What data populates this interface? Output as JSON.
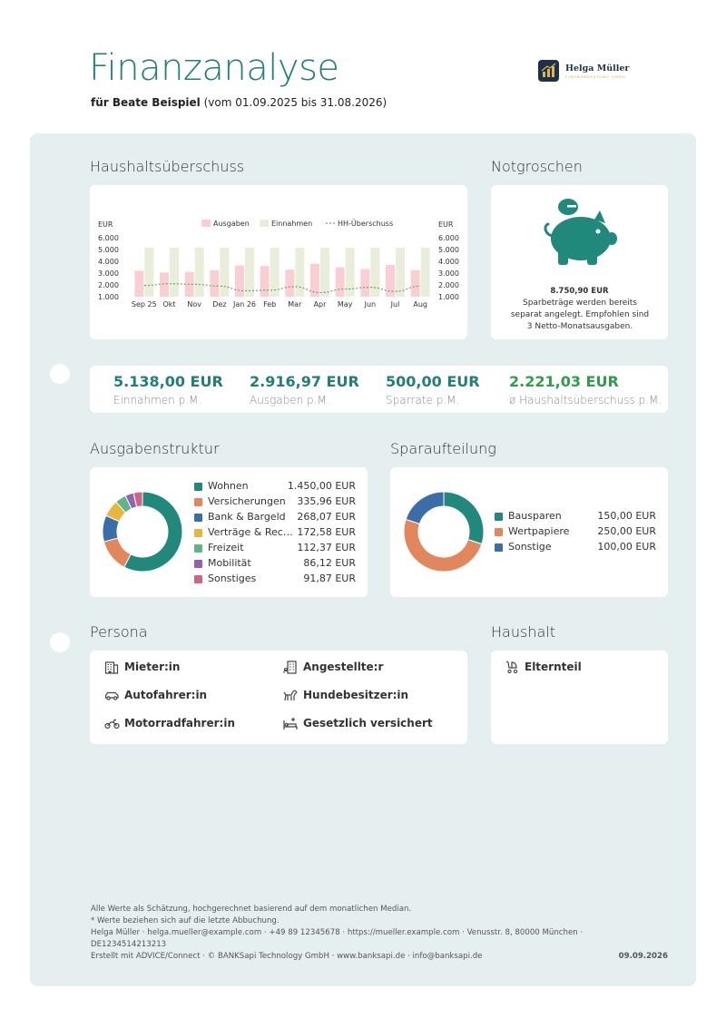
{
  "header": {
    "title": "Finanzanalyse",
    "subtitle_name": "für Beate Beispiel",
    "subtitle_period": " (vom 01.09.2025 bis 31.08.2026)",
    "logo_name": "Helga Müller",
    "logo_sub": "FINANZBERATUNG GMBH",
    "logo_icon": "bar-chart-logo-icon"
  },
  "sections": {
    "haushalt_ueberschuss": "Haushaltsüberschuss",
    "notgroschen": "Notgroschen",
    "ausgabenstruktur": "Ausgabenstruktur",
    "sparaufteilung": "Sparaufteilung",
    "persona": "Persona",
    "haushalt": "Haushalt"
  },
  "chart_data": [
    {
      "type": "bar",
      "categories": [
        "Sep 25",
        "Okt",
        "Nov",
        "Dez",
        "Jan 26",
        "Feb",
        "Mar",
        "Apr",
        "May",
        "Jun",
        "Jul",
        "Aug"
      ],
      "series": [
        {
          "name": "Ausgaben",
          "kind": "bar",
          "color": "#f9cfd4",
          "values": [
            3200,
            3050,
            3100,
            3250,
            3650,
            3600,
            3300,
            3800,
            3500,
            3350,
            3700,
            3250
          ]
        },
        {
          "name": "Einnahmen",
          "kind": "bar",
          "color": "#e8eed9",
          "values": [
            5150,
            5150,
            5150,
            5150,
            5150,
            5150,
            5150,
            5150,
            5150,
            5150,
            5150,
            5150
          ]
        },
        {
          "name": "HH-Überschuss",
          "kind": "line",
          "color": "#6aa56a",
          "values": [
            1950,
            2100,
            2050,
            1900,
            1500,
            1550,
            1850,
            1350,
            1650,
            1800,
            1450,
            1900
          ]
        }
      ],
      "ylabel_left": "EUR",
      "ylabel_right": "EUR",
      "ylim": [
        1000,
        6000
      ],
      "yticks": [
        "6.000",
        "5.000",
        "4.000",
        "3.000",
        "2.000",
        "1.000"
      ],
      "legend": "top-center",
      "grid": false
    },
    {
      "type": "pie",
      "title": "Ausgabenstruktur",
      "donut": true,
      "slices": [
        {
          "label": "Wohnen",
          "value": 1450.0,
          "display": "1.450,00 EUR",
          "color": "#21887c"
        },
        {
          "label": "Versicherungen",
          "value": 335.96,
          "display": "335,96 EUR",
          "color": "#e2875b"
        },
        {
          "label": "Bank & Bargeld",
          "value": 268.07,
          "display": "268,07 EUR",
          "color": "#3b6ea8"
        },
        {
          "label": "Verträge & Rechnu...",
          "value": 172.58,
          "display": "172,58 EUR",
          "color": "#e7b73d"
        },
        {
          "label": "Freizeit",
          "value": 112.37,
          "display": "112,37 EUR",
          "color": "#5fb48a"
        },
        {
          "label": "Mobilität",
          "value": 86.12,
          "display": "86,12 EUR",
          "color": "#8e63b3"
        },
        {
          "label": "Sonstiges",
          "value": 91.87,
          "display": "91,87 EUR",
          "color": "#cf6586"
        }
      ]
    },
    {
      "type": "pie",
      "title": "Sparaufteilung",
      "donut": true,
      "slices": [
        {
          "label": "Bausparen",
          "value": 150.0,
          "display": "150,00 EUR",
          "color": "#21887c"
        },
        {
          "label": "Wertpapiere",
          "value": 250.0,
          "display": "250,00 EUR",
          "color": "#e2875b"
        },
        {
          "label": "Sonstige",
          "value": 100.0,
          "display": "100,00 EUR",
          "color": "#3b6ea8"
        }
      ]
    }
  ],
  "notgroschen": {
    "icon": "piggy-bank-icon",
    "amount": "8.750,90 EUR",
    "text": "Sparbeträge werden bereits separat angelegt. Empfohlen sind 3 Netto-Monatsausgaben."
  },
  "kpis": [
    {
      "value": "5.138,00 EUR",
      "label": "Einnahmen p.M.",
      "color": "#217f78"
    },
    {
      "value": "2.916,97 EUR",
      "label": "Ausgaben p.M.",
      "color": "#217f78"
    },
    {
      "value": "500,00 EUR",
      "label": "Sparrate p.M.",
      "color": "#217f78"
    },
    {
      "value": "2.221,03 EUR",
      "label": "ø Haushaltsüberschuss p.M.",
      "color": "#2e9e49"
    }
  ],
  "persona": [
    {
      "label": "Mieter:in",
      "icon": "apartment-building-icon"
    },
    {
      "label": "Angestellte:r",
      "icon": "office-building-icon"
    },
    {
      "label": "Autofahrer:in",
      "icon": "car-icon"
    },
    {
      "label": "Hundebesitzer:in",
      "icon": "dog-icon"
    },
    {
      "label": "Motorradfahrer:in",
      "icon": "motorcycle-icon"
    },
    {
      "label": "Gesetzlich versichert",
      "icon": "hospital-bed-icon"
    }
  ],
  "haushalt": [
    {
      "label": "Elternteil",
      "icon": "stroller-icon"
    }
  ],
  "footer": {
    "line1": "Alle Werte als Schätzung, hochgerechnet basierend auf dem monatlichen Median.",
    "line2": "* Werte beziehen sich auf die letzte Abbuchung.",
    "line3": "Helga Müller · helga.mueller@example.com · +49 89 12345678 · https://mueller.example.com · Venusstr. 8, 80000 München ·",
    "line4": "DE1234514213213",
    "line5": "Erstellt mit ADVICE/Connect · © BANKSapi Technology GmbH · www.banksapi.de · info@banksapi.de",
    "date": "09.09.2026"
  }
}
